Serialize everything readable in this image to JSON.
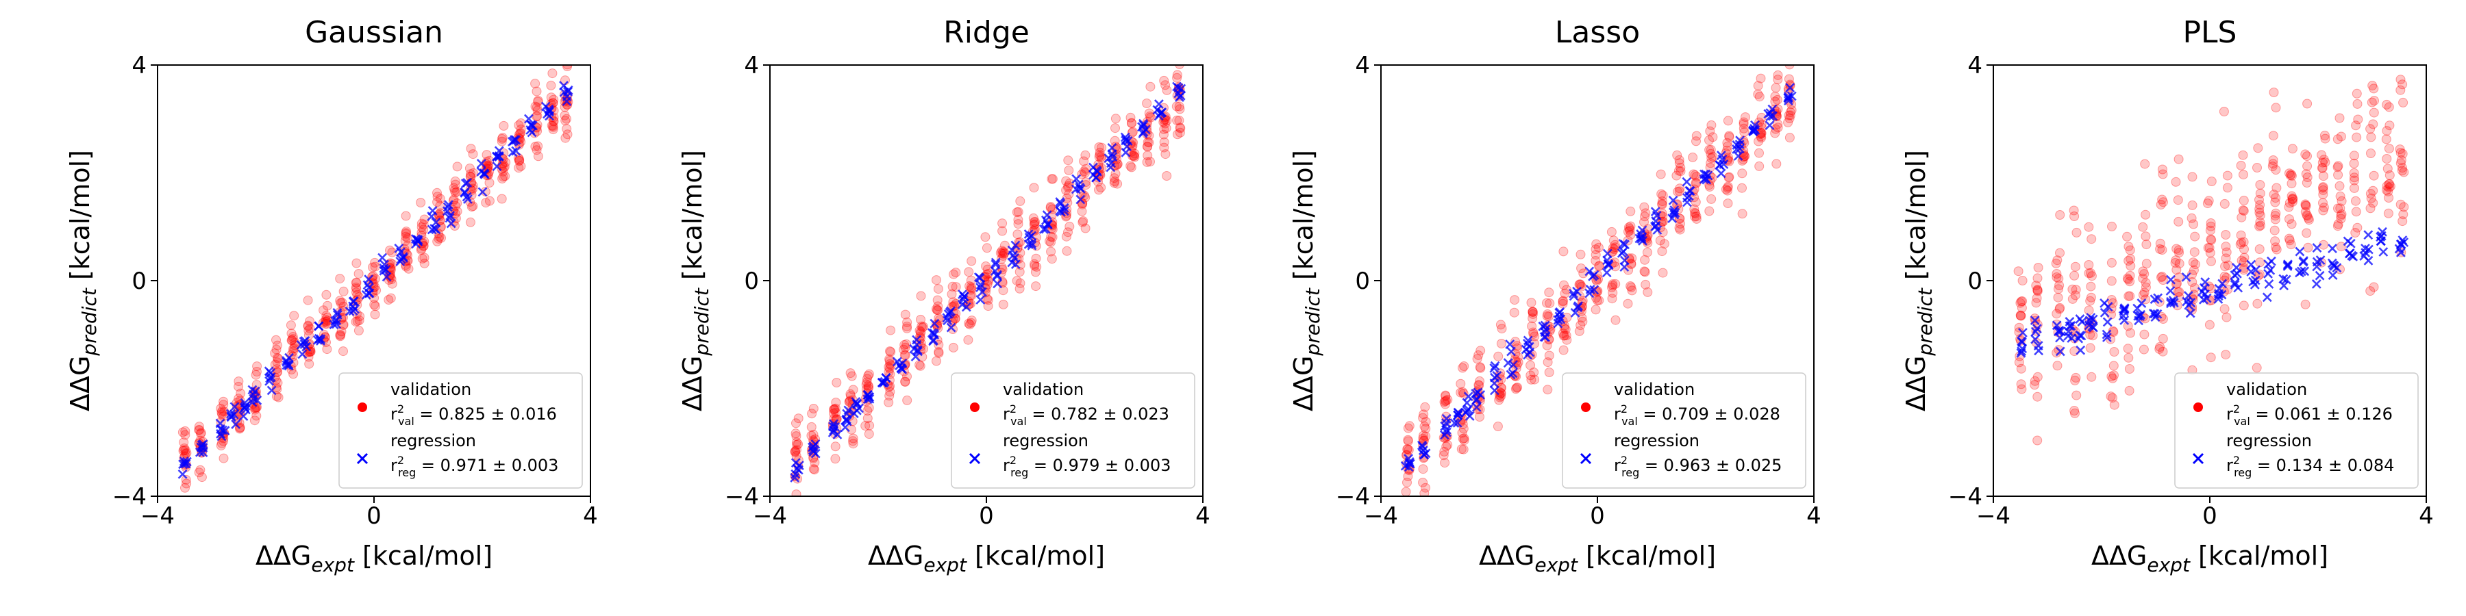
{
  "figure": {
    "xlabel_prefix": "ΔΔG",
    "xlabel_sub": "expt",
    "xlabel_unit": " [kcal/mol]",
    "ylabel_prefix": "ΔΔG",
    "ylabel_sub": "predict",
    "ylabel_unit": " [kcal/mol]",
    "legend_validation": "validation",
    "legend_regression": "regression",
    "r_val_sub": "val",
    "r_reg_sub": "reg",
    "validation_color": "#ff0000",
    "regression_color": "#0000ff"
  },
  "chart_data": [
    {
      "type": "scatter",
      "title": "Gaussian",
      "xlim": [
        -4,
        4
      ],
      "ylim": [
        -4,
        4
      ],
      "xticks": [
        "−4",
        "0",
        "4"
      ],
      "yticks": [
        "−4",
        "0",
        "4"
      ],
      "legend_position": "lower-right",
      "validation_stat": " = 0.825 ± 0.016",
      "regression_stat": " = 0.971 ± 0.003",
      "series": [
        {
          "name": "validation",
          "marker": "circle",
          "color": "#ff0000",
          "slope": 0.95,
          "intercept": 0.0,
          "spread": 0.85,
          "x": [
            -3.5,
            -3.2,
            -2.8,
            -2.5,
            -2.2,
            -1.8,
            -1.5,
            -1.2,
            -0.9,
            -0.6,
            -0.3,
            0.0,
            0.3,
            0.6,
            0.9,
            1.2,
            1.5,
            1.8,
            2.1,
            2.4,
            2.7,
            3.0,
            3.3,
            3.55
          ]
        },
        {
          "name": "regression",
          "marker": "x",
          "color": "#0000ff",
          "slope": 0.98,
          "intercept": 0.0,
          "spread": 0.3,
          "x": [
            -3.5,
            -3.2,
            -2.8,
            -2.6,
            -2.4,
            -2.2,
            -1.9,
            -1.6,
            -1.3,
            -1.0,
            -0.7,
            -0.4,
            -0.1,
            0.2,
            0.5,
            0.8,
            1.1,
            1.4,
            1.7,
            2.0,
            2.3,
            2.6,
            2.9,
            3.2,
            3.55
          ]
        }
      ]
    },
    {
      "type": "scatter",
      "title": "Ridge",
      "xlim": [
        -4,
        4
      ],
      "ylim": [
        -4,
        4
      ],
      "xticks": [
        "−4",
        "0",
        "4"
      ],
      "yticks": [
        "−4",
        "0",
        "4"
      ],
      "legend_position": "lower-right",
      "validation_stat": " = 0.782 ± 0.023",
      "regression_stat": " = 0.979 ± 0.003",
      "series": [
        {
          "name": "validation",
          "marker": "circle",
          "color": "#ff0000",
          "slope": 0.92,
          "intercept": 0.0,
          "spread": 0.95,
          "x": [
            -3.5,
            -3.2,
            -2.8,
            -2.5,
            -2.2,
            -1.8,
            -1.5,
            -1.2,
            -0.9,
            -0.6,
            -0.3,
            0.0,
            0.3,
            0.6,
            0.9,
            1.2,
            1.5,
            1.8,
            2.1,
            2.4,
            2.7,
            3.0,
            3.3,
            3.55
          ]
        },
        {
          "name": "regression",
          "marker": "x",
          "color": "#0000ff",
          "slope": 0.98,
          "intercept": 0.0,
          "spread": 0.28,
          "x": [
            -3.5,
            -3.2,
            -2.8,
            -2.6,
            -2.4,
            -2.2,
            -1.9,
            -1.6,
            -1.3,
            -1.0,
            -0.7,
            -0.4,
            -0.1,
            0.2,
            0.5,
            0.8,
            1.1,
            1.4,
            1.7,
            2.0,
            2.3,
            2.6,
            2.9,
            3.2,
            3.55
          ]
        }
      ]
    },
    {
      "type": "scatter",
      "title": "Lasso",
      "xlim": [
        -4,
        4
      ],
      "ylim": [
        -4,
        4
      ],
      "xticks": [
        "−4",
        "0",
        "4"
      ],
      "yticks": [
        "−4",
        "0",
        "4"
      ],
      "legend_position": "lower-right",
      "validation_stat": " = 0.709 ± 0.028",
      "regression_stat": " = 0.963 ± 0.025",
      "series": [
        {
          "name": "validation",
          "marker": "circle",
          "color": "#ff0000",
          "slope": 0.95,
          "intercept": 0.0,
          "spread": 1.15,
          "x": [
            -3.5,
            -3.2,
            -2.8,
            -2.5,
            -2.2,
            -1.8,
            -1.5,
            -1.2,
            -0.9,
            -0.6,
            -0.3,
            0.0,
            0.3,
            0.6,
            0.9,
            1.2,
            1.5,
            1.8,
            2.1,
            2.4,
            2.7,
            3.0,
            3.3,
            3.55
          ]
        },
        {
          "name": "regression",
          "marker": "x",
          "color": "#0000ff",
          "slope": 0.97,
          "intercept": 0.0,
          "spread": 0.35,
          "x": [
            -3.5,
            -3.2,
            -2.8,
            -2.6,
            -2.4,
            -2.2,
            -1.9,
            -1.6,
            -1.3,
            -1.0,
            -0.7,
            -0.4,
            -0.1,
            0.2,
            0.5,
            0.8,
            1.1,
            1.4,
            1.7,
            2.0,
            2.3,
            2.6,
            2.9,
            3.2,
            3.55
          ]
        }
      ]
    },
    {
      "type": "scatter",
      "title": "PLS",
      "xlim": [
        -4,
        4
      ],
      "ylim": [
        -4,
        4
      ],
      "xticks": [
        "−4",
        "0",
        "4"
      ],
      "yticks": [
        "−4",
        "0",
        "4"
      ],
      "legend_position": "lower-right",
      "validation_stat": " = 0.061 ± 0.126",
      "regression_stat": " = 0.134 ± 0.084",
      "series": [
        {
          "name": "validation",
          "marker": "circle",
          "color": "#ff0000",
          "slope": 0.5,
          "intercept": 0.6,
          "spread": 2.4,
          "x": [
            -3.5,
            -3.2,
            -2.8,
            -2.5,
            -2.2,
            -1.8,
            -1.5,
            -1.2,
            -0.9,
            -0.6,
            -0.3,
            0.0,
            0.3,
            0.6,
            0.9,
            1.2,
            1.5,
            1.8,
            2.1,
            2.4,
            2.7,
            3.0,
            3.3,
            3.55
          ]
        },
        {
          "name": "regression",
          "marker": "x",
          "color": "#0000ff",
          "slope": 0.28,
          "intercept": -0.2,
          "spread": 0.45,
          "x": [
            -3.5,
            -3.2,
            -2.8,
            -2.6,
            -2.4,
            -2.2,
            -1.9,
            -1.6,
            -1.3,
            -1.0,
            -0.7,
            -0.4,
            -0.1,
            0.2,
            0.5,
            0.8,
            1.1,
            1.4,
            1.7,
            2.0,
            2.3,
            2.6,
            2.9,
            3.2,
            3.55
          ]
        }
      ]
    }
  ]
}
